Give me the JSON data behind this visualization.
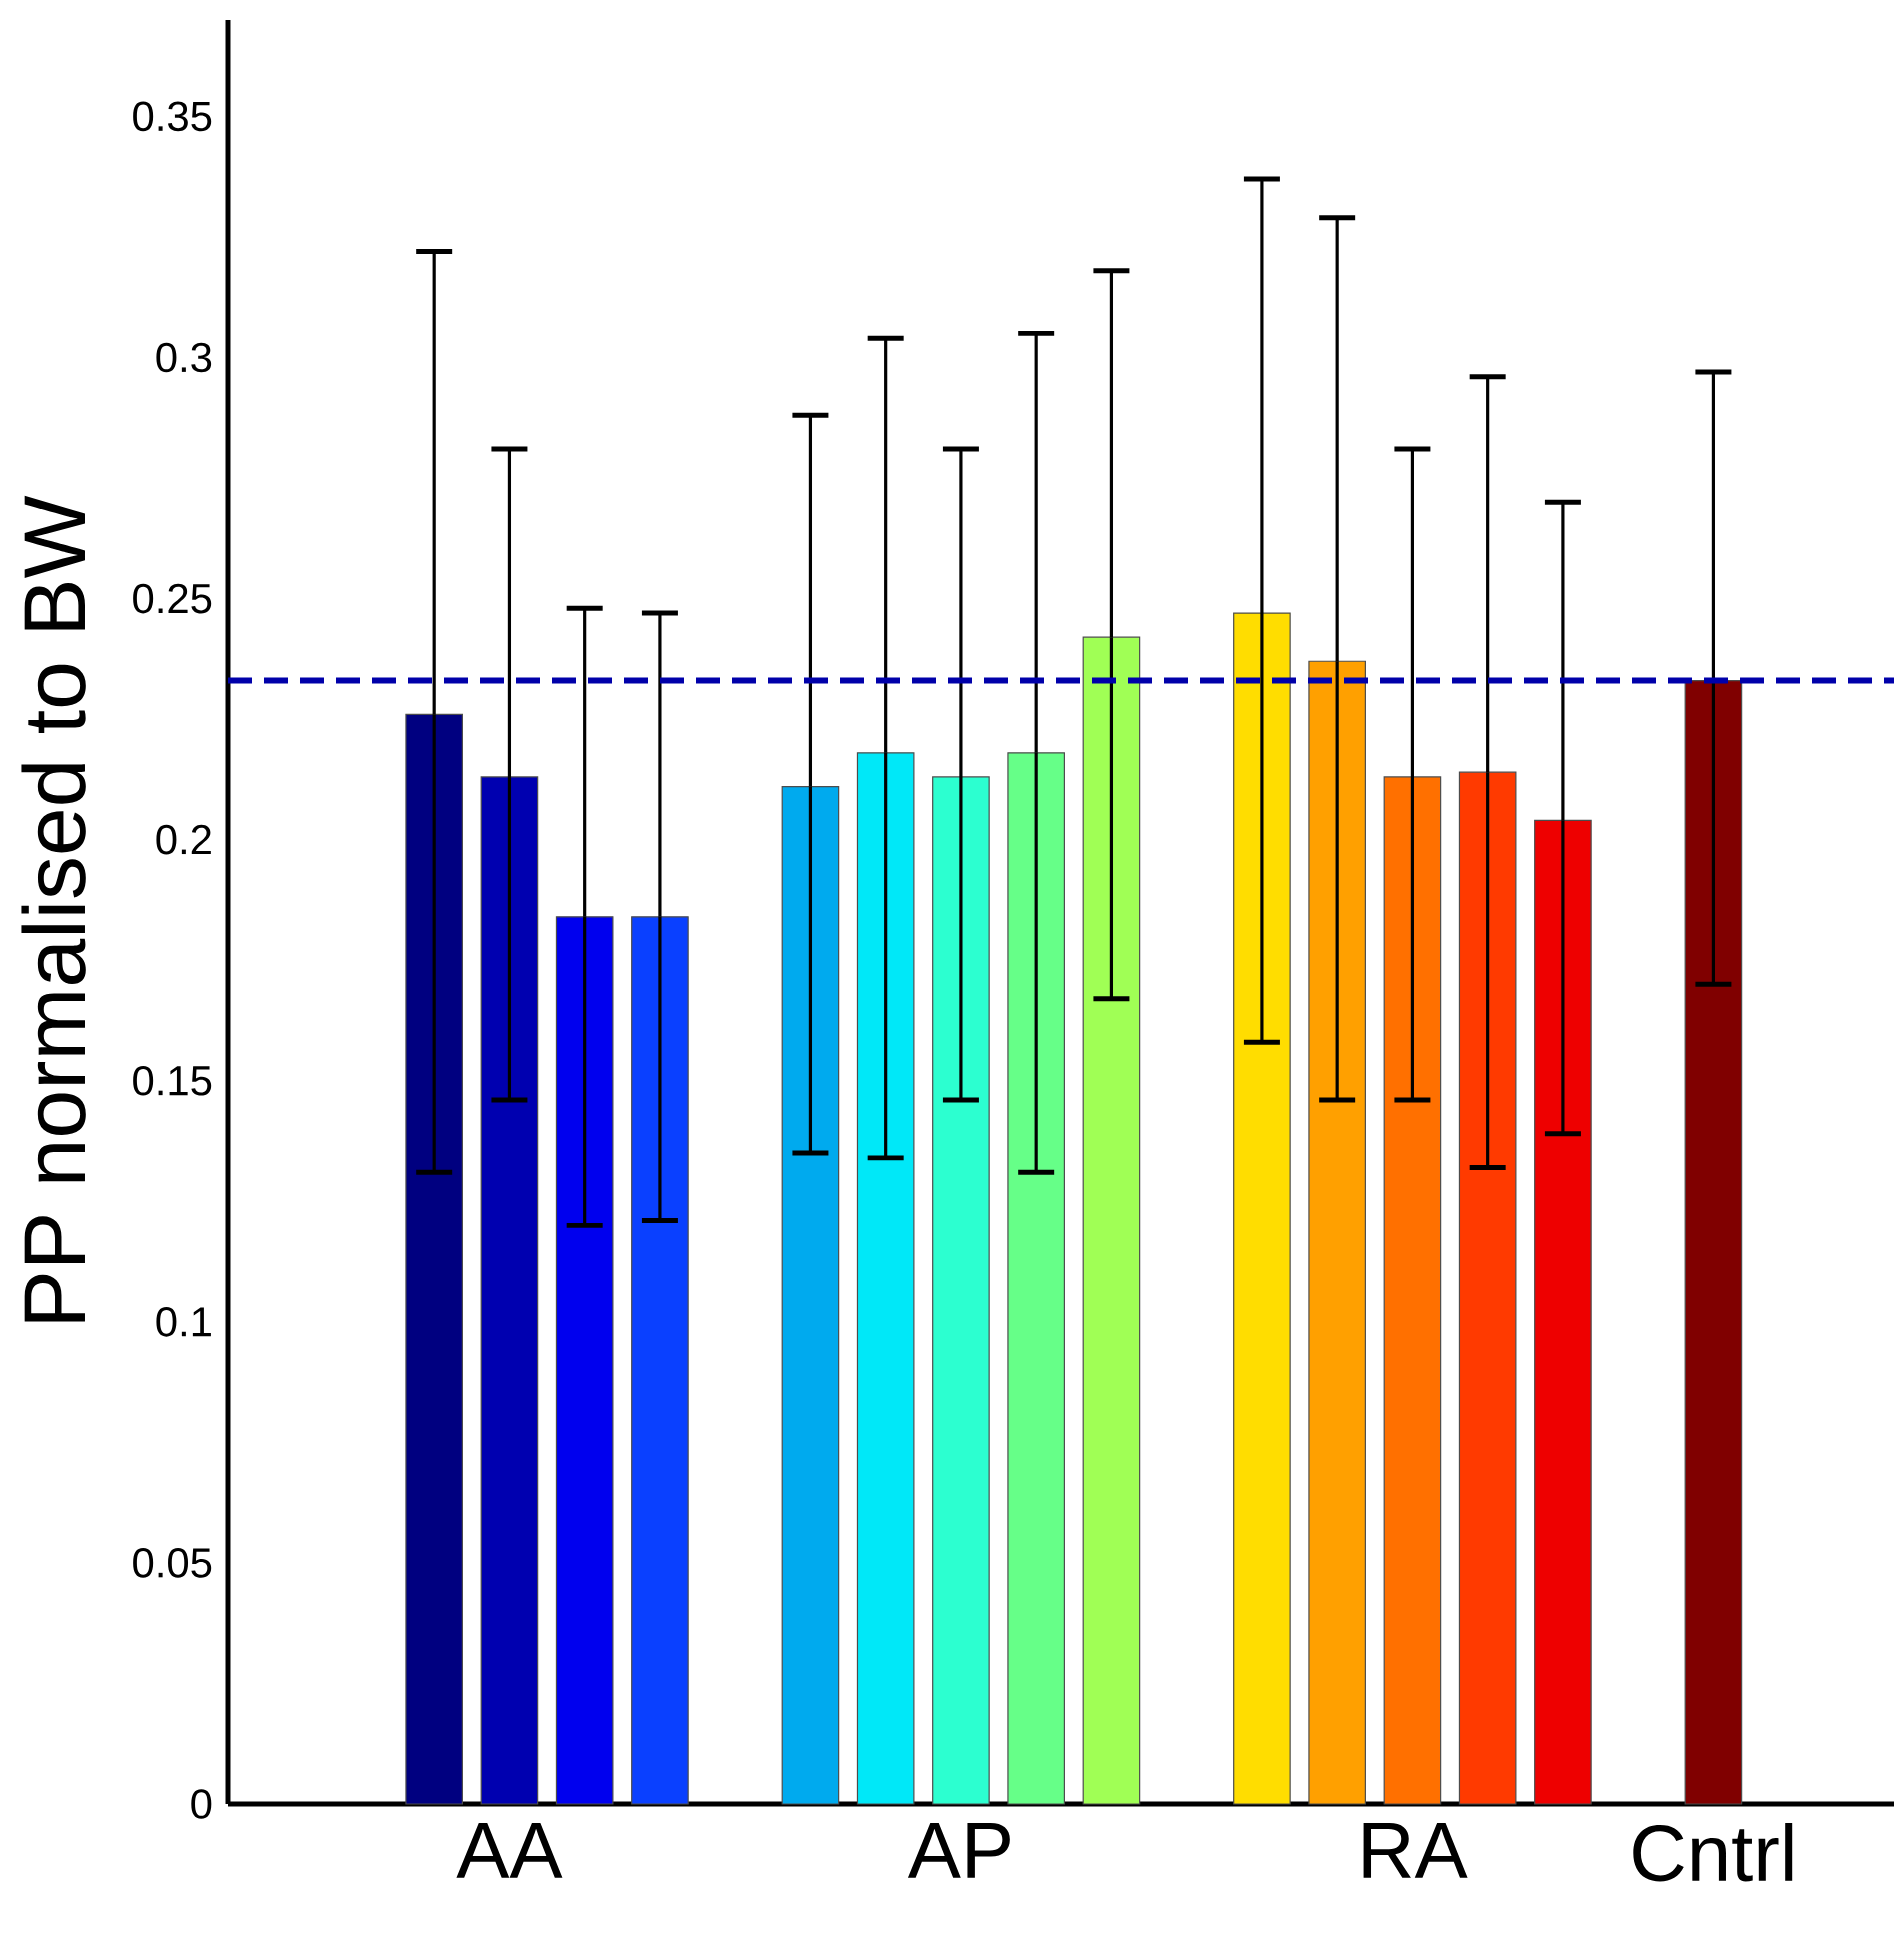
{
  "chart_data": {
    "type": "bar",
    "ylabel": "PP normalised to BW",
    "categories": [
      null,
      "AA",
      null,
      null,
      null,
      null,
      null,
      "AP",
      null,
      null,
      null,
      null,
      null,
      "RA",
      null,
      null,
      null,
      "Cntrl"
    ],
    "values": [
      0.226,
      0.213,
      0.184,
      0.184,
      null,
      0.211,
      0.218,
      0.213,
      0.218,
      0.242,
      null,
      0.247,
      0.237,
      0.213,
      0.214,
      0.204,
      null,
      0.233
    ],
    "errors": [
      [
        0.131,
        0.322
      ],
      [
        0.146,
        0.281
      ],
      [
        0.12,
        0.248
      ],
      [
        0.121,
        0.247
      ],
      null,
      [
        0.135,
        0.288
      ],
      [
        0.134,
        0.304
      ],
      [
        0.146,
        0.281
      ],
      [
        0.131,
        0.305
      ],
      [
        0.167,
        0.318
      ],
      null,
      [
        0.158,
        0.337
      ],
      [
        0.146,
        0.329
      ],
      [
        0.146,
        0.281
      ],
      [
        0.132,
        0.296
      ],
      [
        0.139,
        0.27
      ],
      null,
      [
        0.17,
        0.297
      ]
    ],
    "colors": [
      "#000080",
      "#0000b0",
      "#0000ee",
      "#0a40ff",
      null,
      "#00aaee",
      "#00e8f8",
      "#2cffd0",
      "#66ff88",
      "#a0ff55",
      null,
      "#ffdd00",
      "#ffa000",
      "#ff7000",
      "#ff3a00",
      "#ee0000",
      null,
      "#800000"
    ],
    "ylim": [
      0,
      0.37
    ],
    "yticks": [
      0,
      0.05,
      0.1,
      0.15,
      0.2,
      0.25,
      0.3,
      0.35
    ],
    "ref_lines": [
      {
        "axis": "y",
        "value": 0.233,
        "color": "#0000aa",
        "line_style": "dashed"
      }
    ]
  }
}
